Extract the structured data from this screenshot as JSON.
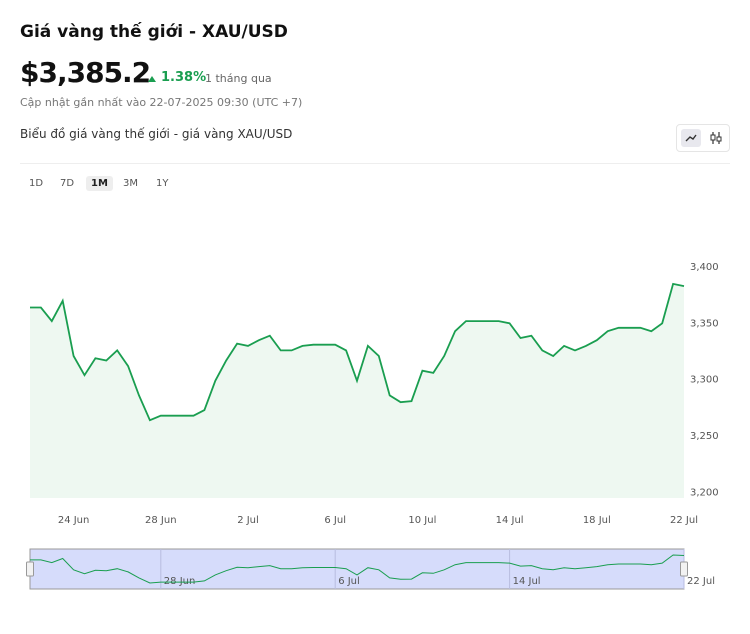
{
  "header": {
    "title": "Giá vàng thế giới - XAU/USD",
    "price": "$3,385.2",
    "change": "1.38%",
    "period": "1 tháng qua",
    "updated": "Cập nhật gần nhất vào 22-07-2025 09:30 (UTC +7)",
    "chart_title": "Biểu đồ giá vàng thế giới - giá vàng XAU/USD"
  },
  "ranges": [
    "1D",
    "7D",
    "1M",
    "3M",
    "1Y"
  ],
  "active_range": "1M",
  "chart_data": {
    "type": "line",
    "color": "#1a9e50",
    "fill": "#eef8f1",
    "grid": false,
    "categories": [
      null,
      null,
      null,
      null,
      "24 Jun",
      null,
      null,
      null,
      null,
      null,
      null,
      null,
      "28 Jun",
      null,
      null,
      null,
      null,
      null,
      null,
      null,
      "2 Jul",
      null,
      null,
      null,
      null,
      null,
      null,
      null,
      "6 Jul",
      null,
      null,
      null,
      null,
      null,
      null,
      null,
      "10 Jul",
      null,
      null,
      null,
      null,
      null,
      null,
      null,
      "14 Jul",
      null,
      null,
      null,
      null,
      null,
      null,
      null,
      "18 Jul",
      null,
      null,
      null,
      null,
      null,
      null,
      null,
      "22 Jul"
    ],
    "values": [
      3364,
      3364,
      3352,
      3370,
      3321,
      3304,
      3319,
      3317,
      3326,
      3312,
      3286,
      3264,
      3268,
      3268,
      3268,
      3268,
      3273,
      3299,
      3317,
      3332,
      3330,
      3335,
      3339,
      3326,
      3326,
      3330,
      3331,
      3331,
      3331,
      3326,
      3299,
      3330,
      3321,
      3286,
      3280,
      3281,
      3308,
      3306,
      3321,
      3343,
      3352,
      3352,
      3352,
      3352,
      3350,
      3337,
      3339,
      3326,
      3321,
      3330,
      3326,
      3330,
      3335,
      3343,
      3346,
      3346,
      3346,
      3343,
      3350,
      3385,
      3383
    ],
    "ylim": [
      3195,
      3455
    ],
    "yticks": [
      {
        "value": 3200,
        "label": "3,200"
      },
      {
        "value": 3250,
        "label": "3,250"
      },
      {
        "value": 3300,
        "label": "3,300"
      },
      {
        "value": 3350,
        "label": "3,350"
      },
      {
        "value": 3400,
        "label": "3,400"
      }
    ]
  },
  "navigator": {
    "labels": [
      "28 Jun",
      "6 Jul",
      "14 Jul",
      "22 Jul"
    ]
  }
}
